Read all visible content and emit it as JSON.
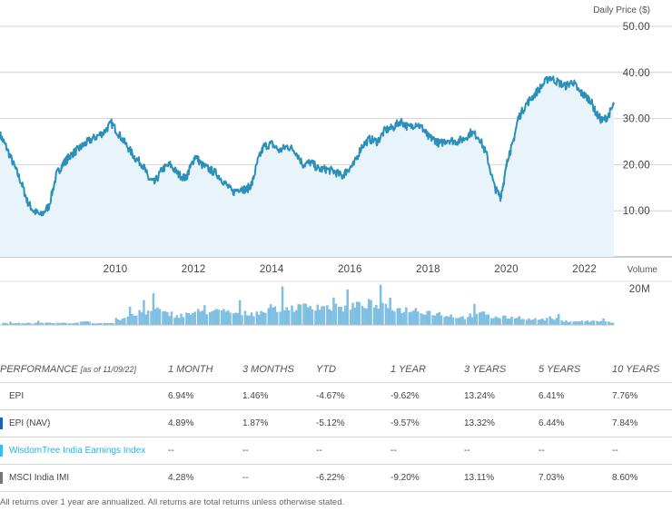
{
  "chart_data": {
    "type": "line",
    "title": "",
    "ylabel": "Daily Price ($)",
    "ylim": [
      0,
      50
    ],
    "yticks": [
      "10.00",
      "20.00",
      "30.00",
      "40.00",
      "50.00"
    ],
    "xlim": [
      2007.15,
      2022.85
    ],
    "xticks": [
      "2010",
      "2012",
      "2014",
      "2016",
      "2018",
      "2020",
      "2022"
    ],
    "series": [
      {
        "name": "EPI Daily Price",
        "x": [
          2007.15,
          2007.3,
          2007.5,
          2007.7,
          2007.85,
          2008.0,
          2008.2,
          2008.4,
          2008.6,
          2008.75,
          2008.85,
          2008.95,
          2009.1,
          2009.25,
          2009.4,
          2009.6,
          2009.8,
          2010.0,
          2010.2,
          2010.4,
          2010.6,
          2010.8,
          2010.95,
          2011.1,
          2011.3,
          2011.5,
          2011.7,
          2011.9,
          2012.0,
          2012.15,
          2012.3,
          2012.5,
          2012.7,
          2012.9,
          2013.1,
          2013.3,
          2013.45,
          2013.6,
          2013.75,
          2013.9,
          2014.1,
          2014.3,
          2014.5,
          2014.7,
          2014.9,
          2015.1,
          2015.3,
          2015.5,
          2015.7,
          2015.9,
          2016.05,
          2016.2,
          2016.4,
          2016.6,
          2016.8,
          2017.0,
          2017.2,
          2017.4,
          2017.6,
          2017.8,
          2018.0,
          2018.1,
          2018.25,
          2018.4,
          2018.6,
          2018.8,
          2019.0,
          2019.2,
          2019.4,
          2019.6,
          2019.8,
          2019.95,
          2020.05,
          2020.15,
          2020.25,
          2020.4,
          2020.6,
          2020.8,
          2021.0,
          2021.2,
          2021.4,
          2021.6,
          2021.8,
          2021.95,
          2022.1,
          2022.25,
          2022.4,
          2022.55,
          2022.7,
          2022.85
        ],
        "values": [
          26.5,
          24,
          20,
          16,
          12,
          10,
          9,
          11,
          18,
          20,
          21,
          22,
          23,
          24,
          25,
          26,
          27,
          29,
          26.5,
          24,
          21.5,
          20,
          17,
          16,
          19,
          20,
          18,
          17,
          19,
          22,
          20,
          19,
          18,
          16,
          14,
          15,
          14.5,
          16,
          21,
          24,
          24.5,
          23,
          24,
          23,
          20,
          20.5,
          19,
          19,
          18.5,
          17.5,
          19,
          20,
          24,
          25.5,
          25,
          27.5,
          28,
          29.5,
          28,
          29,
          27.5,
          26,
          25.5,
          24.5,
          25.5,
          25,
          25.5,
          27,
          26,
          22,
          15,
          13,
          17,
          22,
          24,
          30,
          33,
          35,
          37,
          39,
          38,
          37,
          38,
          36,
          35,
          34,
          31,
          29.5,
          30.5,
          33
        ]
      }
    ],
    "volume": {
      "label": "Volume",
      "ytick": "20M",
      "ymax": 20,
      "x": [
        2007.2,
        2007.5,
        2007.8,
        2008.1,
        2008.4,
        2008.7,
        2009.0,
        2009.3,
        2009.6,
        2009.9,
        2010.2,
        2010.5,
        2010.8,
        2011.1,
        2011.4,
        2011.7,
        2012.0,
        2012.3,
        2012.6,
        2012.9,
        2013.2,
        2013.5,
        2013.8,
        2014.1,
        2014.4,
        2014.7,
        2015.0,
        2015.3,
        2015.6,
        2015.9,
        2016.2,
        2016.5,
        2016.8,
        2017.1,
        2017.4,
        2017.7,
        2018.0,
        2018.3,
        2018.6,
        2018.9,
        2019.2,
        2019.5,
        2019.8,
        2020.1,
        2020.4,
        2020.7,
        2021.0,
        2021.3,
        2021.6,
        2021.9,
        2022.2,
        2022.5,
        2022.8
      ],
      "values": [
        1,
        1,
        1,
        1,
        1,
        1,
        1,
        2,
        1,
        1,
        3,
        5,
        7,
        8,
        6,
        5,
        6,
        7,
        7,
        7,
        6,
        6,
        7,
        8,
        9,
        9,
        10,
        10,
        9,
        9,
        10,
        11,
        10,
        9,
        8,
        8,
        7,
        6,
        5,
        4,
        5,
        6,
        4,
        4,
        4,
        3,
        3,
        3,
        2,
        2,
        2,
        2,
        1
      ]
    }
  },
  "performance": {
    "header": "PERFORMANCE",
    "as_of": "[as of 11/09/22]",
    "columns": [
      "1 MONTH",
      "3 MONTHS",
      "YTD",
      "1 YEAR",
      "3 YEARS",
      "5 YEARS",
      "10 YEARS"
    ],
    "rows": [
      {
        "name": "EPI",
        "marker_color": "",
        "values": [
          "6.94%",
          "1.46%",
          "-4.67%",
          "-9.62%",
          "13.24%",
          "6.41%",
          "7.76%"
        ]
      },
      {
        "name": "EPI (NAV)",
        "marker_color": "#1565c0",
        "values": [
          "4.89%",
          "1.87%",
          "-5.12%",
          "-9.57%",
          "13.32%",
          "6.44%",
          "7.84%"
        ]
      },
      {
        "name": "WisdomTree India Earnings Index",
        "marker_color": "#29c4f0",
        "values": [
          "--",
          "--",
          "--",
          "--",
          "--",
          "--",
          "--"
        ]
      },
      {
        "name": "MSCI India IMI",
        "marker_color": "#777777",
        "values": [
          "4.28%",
          "--",
          "-6.22%",
          "-9.20%",
          "13.11%",
          "7.03%",
          "8.60%"
        ]
      }
    ]
  },
  "footnote": "All returns over 1 year are annualized. All returns are total returns unless otherwise stated.",
  "colors": {
    "line": "#2a8fb9",
    "fill": "#e8f3fa",
    "volume": "#7fbfe3",
    "grid": "#d4d4d4"
  }
}
